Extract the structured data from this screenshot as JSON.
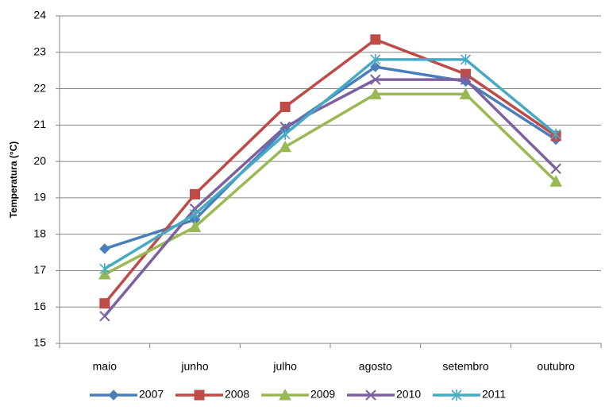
{
  "chart_data": {
    "type": "line",
    "y_label": "Temperatura (°C)",
    "categories": [
      "maio",
      "junho",
      "julho",
      "agosto",
      "setembro",
      "outubro"
    ],
    "series": [
      {
        "name": "2007",
        "color": "#4a7ebb",
        "marker": "diamond",
        "values": [
          17.6,
          18.4,
          20.9,
          22.6,
          22.2,
          20.6
        ]
      },
      {
        "name": "2008",
        "color": "#be4b48",
        "marker": "square",
        "values": [
          16.1,
          19.1,
          21.5,
          23.35,
          22.4,
          20.7
        ]
      },
      {
        "name": "2009",
        "color": "#98b954",
        "marker": "triangle",
        "values": [
          16.9,
          18.2,
          20.4,
          21.85,
          21.85,
          19.45
        ]
      },
      {
        "name": "2010",
        "color": "#7d60a0",
        "marker": "x",
        "values": [
          15.75,
          18.7,
          20.95,
          22.25,
          22.25,
          19.8
        ]
      },
      {
        "name": "2011",
        "color": "#46aac5",
        "marker": "star",
        "values": [
          17.05,
          18.55,
          20.75,
          22.8,
          22.8,
          20.75
        ]
      }
    ],
    "ylim": [
      15,
      24
    ],
    "yticks": [
      15,
      16,
      17,
      18,
      19,
      20,
      21,
      22,
      23,
      24
    ],
    "grid": true,
    "legend": "bottom"
  }
}
